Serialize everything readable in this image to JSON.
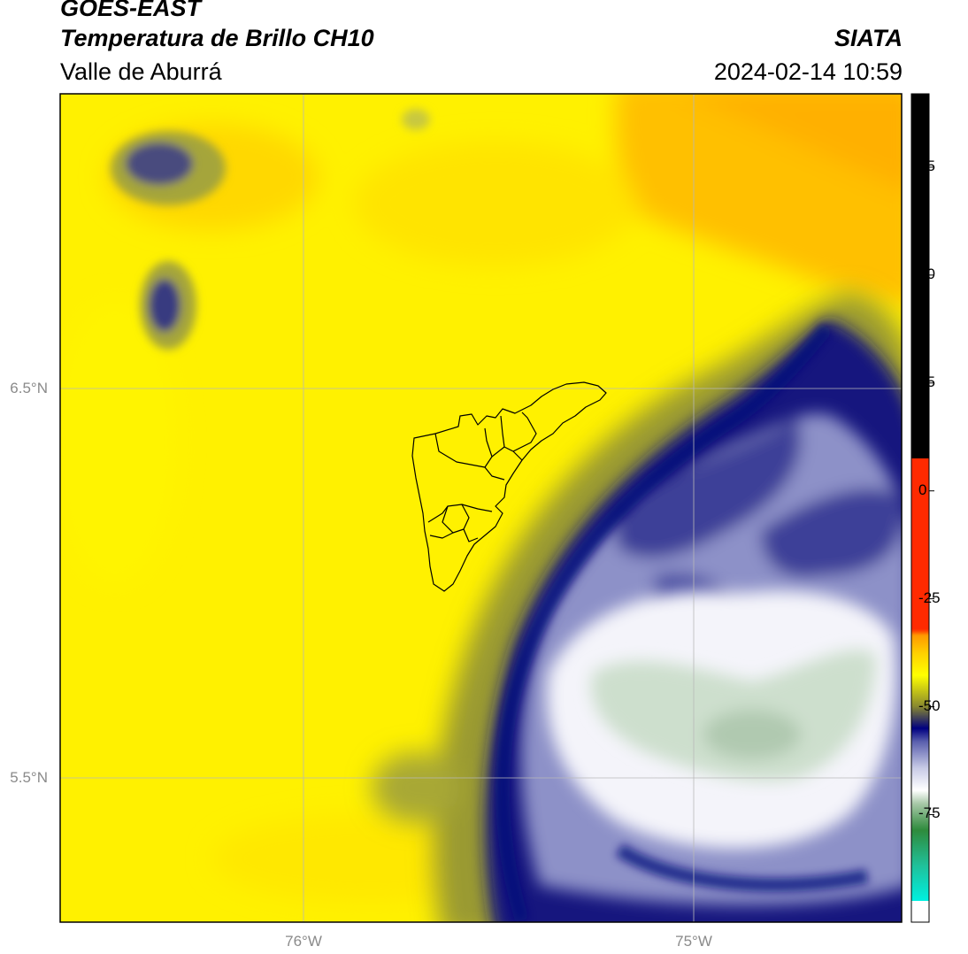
{
  "header": {
    "satellite": "GOES-EAST",
    "product": "Temperatura de Brillo CH10",
    "region": "Valle de Aburrá",
    "agency": "SIATA",
    "timestamp": "2024-02-14 10:59"
  },
  "map": {
    "lat_labels": [
      "6.5°N",
      "5.5°N"
    ],
    "lon_labels": [
      "76°W",
      "75°W"
    ],
    "gridlines": true
  },
  "colorbar": {
    "ticks": [
      "75",
      "50",
      "25",
      "0",
      "-25",
      "-50",
      "-75"
    ],
    "tick_values": [
      75,
      50,
      25,
      0,
      -25,
      -50,
      -75
    ],
    "range": [
      -95,
      92
    ],
    "colors": {
      "black": "#000000",
      "red": "#ff2a00",
      "orange": "#ff9900",
      "yellow": "#ffff00",
      "olive": "#8a8a2e",
      "navy": "#000080",
      "lavender": "#b8bcdc",
      "white": "#ffffff",
      "light-green": "#c8dcc8",
      "green": "#2e8b2e",
      "teal": "#20b080",
      "cyan": "#00eedd"
    }
  }
}
